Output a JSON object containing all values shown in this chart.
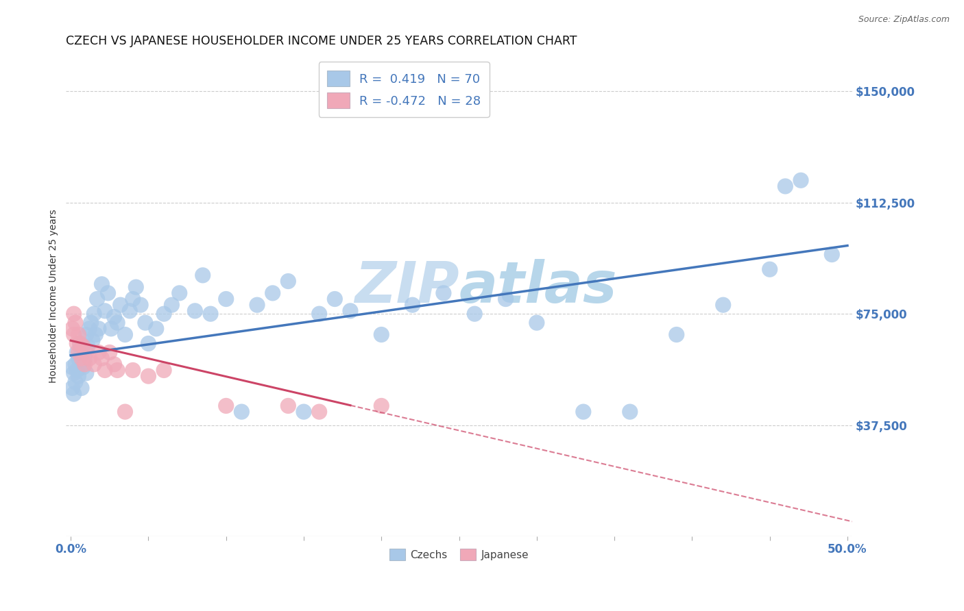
{
  "title": "CZECH VS JAPANESE HOUSEHOLDER INCOME UNDER 25 YEARS CORRELATION CHART",
  "source": "Source: ZipAtlas.com",
  "ylabel": "Householder Income Under 25 years",
  "xlabel_ticks": [
    "0.0%",
    "",
    "",
    "",
    "",
    "",
    "",
    "",
    "",
    "50.0%"
  ],
  "xlabel_vals": [
    0.0,
    0.05,
    0.1,
    0.15,
    0.2,
    0.25,
    0.3,
    0.35,
    0.4,
    0.5
  ],
  "ytick_labels": [
    "$37,500",
    "$75,000",
    "$112,500",
    "$150,000"
  ],
  "ytick_vals": [
    37500,
    75000,
    112500,
    150000
  ],
  "ylim": [
    0,
    162000
  ],
  "xlim": [
    -0.003,
    0.503
  ],
  "czech_R": 0.419,
  "czech_N": 70,
  "japanese_R": -0.472,
  "japanese_N": 28,
  "czech_color": "#a8c8e8",
  "czech_color_edge": "#7aaed0",
  "czech_line_color": "#4477bb",
  "japanese_color": "#f0a8b8",
  "japanese_color_edge": "#e08898",
  "japanese_line_color": "#cc4466",
  "watermark_color": "#c8ddf0",
  "background_color": "#ffffff",
  "grid_color": "#cccccc",
  "czech_x": [
    0.001,
    0.001,
    0.002,
    0.002,
    0.003,
    0.003,
    0.004,
    0.004,
    0.005,
    0.005,
    0.006,
    0.006,
    0.007,
    0.007,
    0.008,
    0.009,
    0.01,
    0.01,
    0.011,
    0.012,
    0.013,
    0.014,
    0.015,
    0.016,
    0.017,
    0.018,
    0.02,
    0.022,
    0.024,
    0.026,
    0.028,
    0.03,
    0.032,
    0.035,
    0.038,
    0.04,
    0.042,
    0.045,
    0.048,
    0.05,
    0.055,
    0.06,
    0.065,
    0.07,
    0.08,
    0.085,
    0.09,
    0.1,
    0.11,
    0.12,
    0.13,
    0.14,
    0.15,
    0.16,
    0.17,
    0.18,
    0.2,
    0.22,
    0.24,
    0.26,
    0.28,
    0.3,
    0.33,
    0.36,
    0.39,
    0.42,
    0.45,
    0.46,
    0.47,
    0.49
  ],
  "czech_y": [
    57000,
    50000,
    55000,
    48000,
    58000,
    52000,
    62000,
    56000,
    60000,
    54000,
    65000,
    58000,
    63000,
    50000,
    57000,
    60000,
    68000,
    55000,
    64000,
    70000,
    72000,
    66000,
    75000,
    68000,
    80000,
    70000,
    85000,
    76000,
    82000,
    70000,
    74000,
    72000,
    78000,
    68000,
    76000,
    80000,
    84000,
    78000,
    72000,
    65000,
    70000,
    75000,
    78000,
    82000,
    76000,
    88000,
    75000,
    80000,
    42000,
    78000,
    82000,
    86000,
    42000,
    75000,
    80000,
    76000,
    68000,
    78000,
    82000,
    75000,
    80000,
    72000,
    42000,
    42000,
    68000,
    78000,
    90000,
    118000,
    120000,
    95000
  ],
  "japanese_x": [
    0.001,
    0.002,
    0.002,
    0.003,
    0.004,
    0.005,
    0.005,
    0.006,
    0.007,
    0.008,
    0.009,
    0.01,
    0.012,
    0.015,
    0.018,
    0.02,
    0.022,
    0.025,
    0.028,
    0.03,
    0.035,
    0.04,
    0.05,
    0.06,
    0.1,
    0.14,
    0.16,
    0.2
  ],
  "japanese_y": [
    70000,
    68000,
    75000,
    72000,
    65000,
    68000,
    62000,
    65000,
    60000,
    64000,
    58000,
    62000,
    60000,
    58000,
    62000,
    60000,
    56000,
    62000,
    58000,
    56000,
    42000,
    56000,
    54000,
    56000,
    44000,
    44000,
    42000,
    44000
  ],
  "czech_line_x0": 0.0,
  "czech_line_y0": 61000,
  "czech_line_x1": 0.5,
  "czech_line_y1": 98000,
  "jap_line_x0": 0.0,
  "jap_line_y0": 66000,
  "jap_line_x1": 0.503,
  "jap_line_y1": 5000
}
